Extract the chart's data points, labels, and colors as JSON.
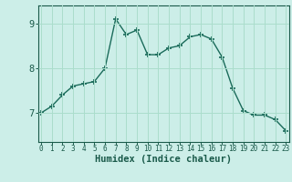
{
  "x": [
    0,
    1,
    2,
    3,
    4,
    5,
    6,
    7,
    8,
    9,
    10,
    11,
    12,
    13,
    14,
    15,
    16,
    17,
    18,
    19,
    20,
    21,
    22,
    23
  ],
  "y": [
    7.0,
    7.15,
    7.4,
    7.6,
    7.65,
    7.7,
    8.0,
    9.1,
    8.75,
    8.85,
    8.3,
    8.3,
    8.45,
    8.5,
    8.7,
    8.75,
    8.65,
    8.25,
    7.55,
    7.05,
    6.95,
    6.95,
    6.85,
    6.6
  ],
  "line_color": "#1a6b5a",
  "marker": "+",
  "marker_size": 5,
  "marker_linewidth": 1.2,
  "bg_color": "#cceee8",
  "grid_color": "#aaddcc",
  "axis_color": "#1a5a4a",
  "tick_color": "#1a5a4a",
  "xlabel": "Humidex (Indice chaleur)",
  "yticks": [
    7,
    8,
    9
  ],
  "xticks": [
    0,
    1,
    2,
    3,
    4,
    5,
    6,
    7,
    8,
    9,
    10,
    11,
    12,
    13,
    14,
    15,
    16,
    17,
    18,
    19,
    20,
    21,
    22,
    23
  ],
  "xlim": [
    -0.3,
    23.3
  ],
  "ylim": [
    6.35,
    9.4
  ],
  "xticklabel_fontsize": 5.5,
  "yticklabel_fontsize": 7.5,
  "xlabel_fontsize": 7.5
}
